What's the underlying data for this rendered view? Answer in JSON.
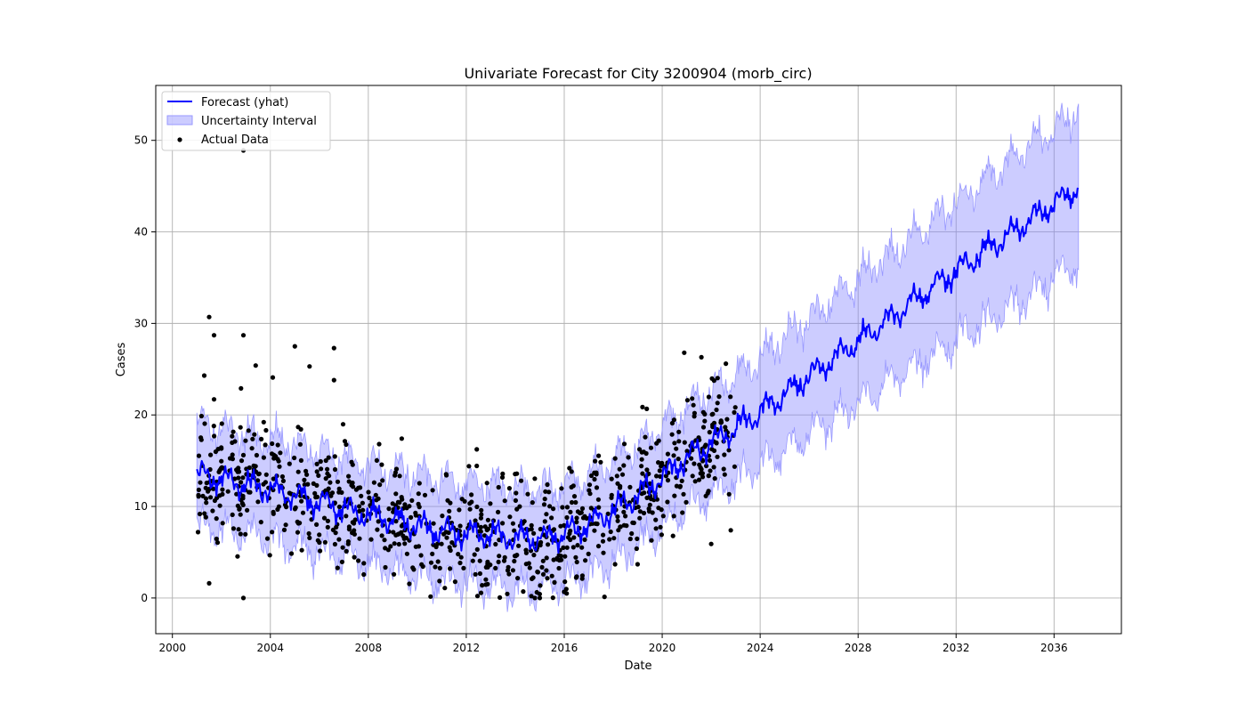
{
  "chart_data": {
    "type": "line",
    "title": "Univariate Forecast for City 3200904 (morb_circ)",
    "xlabel": "Date",
    "ylabel": "Cases",
    "xlim": [
      1999.32,
      2038.75
    ],
    "ylim": [
      -3.9,
      56.0
    ],
    "x_ticks": [
      {
        "value": 2000,
        "label": "2000"
      },
      {
        "value": 2004,
        "label": "2004"
      },
      {
        "value": 2008,
        "label": "2008"
      },
      {
        "value": 2012,
        "label": "2012"
      },
      {
        "value": 2016,
        "label": "2016"
      },
      {
        "value": 2020,
        "label": "2020"
      },
      {
        "value": 2024,
        "label": "2024"
      },
      {
        "value": 2028,
        "label": "2028"
      },
      {
        "value": 2032,
        "label": "2032"
      },
      {
        "value": 2036,
        "label": "2036"
      }
    ],
    "y_ticks": [
      {
        "value": 0,
        "label": "0"
      },
      {
        "value": 10,
        "label": "10"
      },
      {
        "value": 20,
        "label": "20"
      },
      {
        "value": 30,
        "label": "30"
      },
      {
        "value": 40,
        "label": "40"
      },
      {
        "value": 50,
        "label": "50"
      }
    ],
    "grid": true,
    "legend_position": "top-left",
    "legend": [
      {
        "label": "Forecast (yhat)",
        "kind": "line"
      },
      {
        "label": "Uncertainty Interval",
        "kind": "band"
      },
      {
        "label": "Actual Data",
        "kind": "dot"
      }
    ],
    "colors": {
      "forecast": "#0000ff",
      "band": "#7f7fff",
      "band_edge": "#9999ff",
      "actual": "#000000",
      "grid": "#b0b0b0"
    },
    "forecast": {
      "name": "Forecast (yhat)",
      "x": [
        2001.0,
        2002.0,
        2003.0,
        2004.0,
        2005.0,
        2006.0,
        2007.0,
        2008.0,
        2009.0,
        2010.0,
        2011.0,
        2012.0,
        2013.0,
        2014.0,
        2015.0,
        2016.0,
        2017.0,
        2018.0,
        2019.0,
        2020.0,
        2021.0,
        2022.0,
        2023.0,
        2024.0,
        2025.0,
        2026.0,
        2027.0,
        2028.0,
        2029.0,
        2030.0,
        2031.0,
        2032.0,
        2033.0,
        2034.0,
        2035.0,
        2036.0,
        2037.0
      ],
      "y": [
        13.5,
        13.0,
        12.4,
        11.9,
        11.2,
        10.5,
        9.8,
        9.1,
        8.5,
        7.9,
        7.3,
        7.1,
        6.9,
        6.5,
        6.5,
        7.0,
        8.0,
        9.5,
        11.2,
        13.2,
        15.3,
        17.0,
        18.5,
        20.4,
        22.3,
        24.2,
        26.2,
        28.1,
        30.0,
        31.9,
        33.8,
        35.7,
        37.6,
        39.4,
        41.3,
        43.1,
        45.0
      ],
      "seasonal_amplitude": 1.5
    },
    "uncertainty_interval": {
      "name": "Uncertainty Interval",
      "x": [
        2001.0,
        2002.0,
        2003.0,
        2004.0,
        2005.0,
        2006.0,
        2007.0,
        2008.0,
        2009.0,
        2010.0,
        2011.0,
        2012.0,
        2013.0,
        2014.0,
        2015.0,
        2016.0,
        2017.0,
        2018.0,
        2019.0,
        2020.0,
        2021.0,
        2022.0,
        2023.0,
        2024.0,
        2025.0,
        2026.0,
        2027.0,
        2028.0,
        2029.0,
        2030.0,
        2031.0,
        2032.0,
        2033.0,
        2034.0,
        2035.0,
        2036.0,
        2037.0
      ],
      "lower": [
        8.0,
        7.5,
        7.0,
        6.5,
        5.8,
        5.1,
        4.4,
        3.7,
        3.1,
        2.5,
        1.9,
        1.6,
        1.4,
        1.0,
        1.0,
        1.5,
        2.5,
        4.0,
        5.7,
        7.7,
        9.7,
        11.4,
        12.9,
        14.6,
        16.3,
        18.0,
        19.7,
        21.4,
        23.1,
        24.8,
        26.4,
        28.1,
        29.8,
        31.4,
        33.1,
        34.9,
        36.6
      ],
      "upper": [
        19.0,
        18.5,
        17.9,
        17.4,
        16.7,
        16.0,
        15.3,
        14.6,
        14.0,
        13.4,
        12.8,
        12.6,
        12.4,
        12.0,
        12.0,
        12.5,
        13.5,
        15.0,
        16.7,
        18.7,
        20.9,
        22.6,
        24.1,
        26.2,
        28.3,
        30.4,
        32.7,
        34.8,
        36.9,
        39.0,
        41.2,
        43.3,
        45.4,
        47.4,
        49.5,
        51.3,
        53.4
      ]
    },
    "actual_data": {
      "name": "Actual Data",
      "x_range": [
        2001.0,
        2023.0
      ],
      "mean_offset": 0.0,
      "spread_sd": 3.2,
      "notable_points": [
        {
          "x": 2002.9,
          "y": 48.9
        },
        {
          "x": 2001.5,
          "y": 30.7
        },
        {
          "x": 2001.7,
          "y": 28.7
        },
        {
          "x": 2002.9,
          "y": 28.7
        },
        {
          "x": 2005.0,
          "y": 27.5
        },
        {
          "x": 2006.6,
          "y": 27.3
        },
        {
          "x": 2003.4,
          "y": 25.4
        },
        {
          "x": 2005.6,
          "y": 25.3
        },
        {
          "x": 2001.3,
          "y": 24.3
        },
        {
          "x": 2004.1,
          "y": 24.1
        },
        {
          "x": 2006.6,
          "y": 23.8
        },
        {
          "x": 2002.8,
          "y": 22.9
        },
        {
          "x": 2001.7,
          "y": 21.7
        },
        {
          "x": 2020.9,
          "y": 26.8
        },
        {
          "x": 2021.6,
          "y": 26.3
        },
        {
          "x": 2022.6,
          "y": 25.6
        },
        {
          "x": 2002.9,
          "y": 0.0
        },
        {
          "x": 2014.8,
          "y": 0.0
        },
        {
          "x": 2015.0,
          "y": 0.0
        },
        {
          "x": 2016.1,
          "y": 0.5
        },
        {
          "x": 2001.5,
          "y": 1.6
        },
        {
          "x": 2022.0,
          "y": 5.9
        },
        {
          "x": 2022.8,
          "y": 7.4
        }
      ]
    }
  }
}
